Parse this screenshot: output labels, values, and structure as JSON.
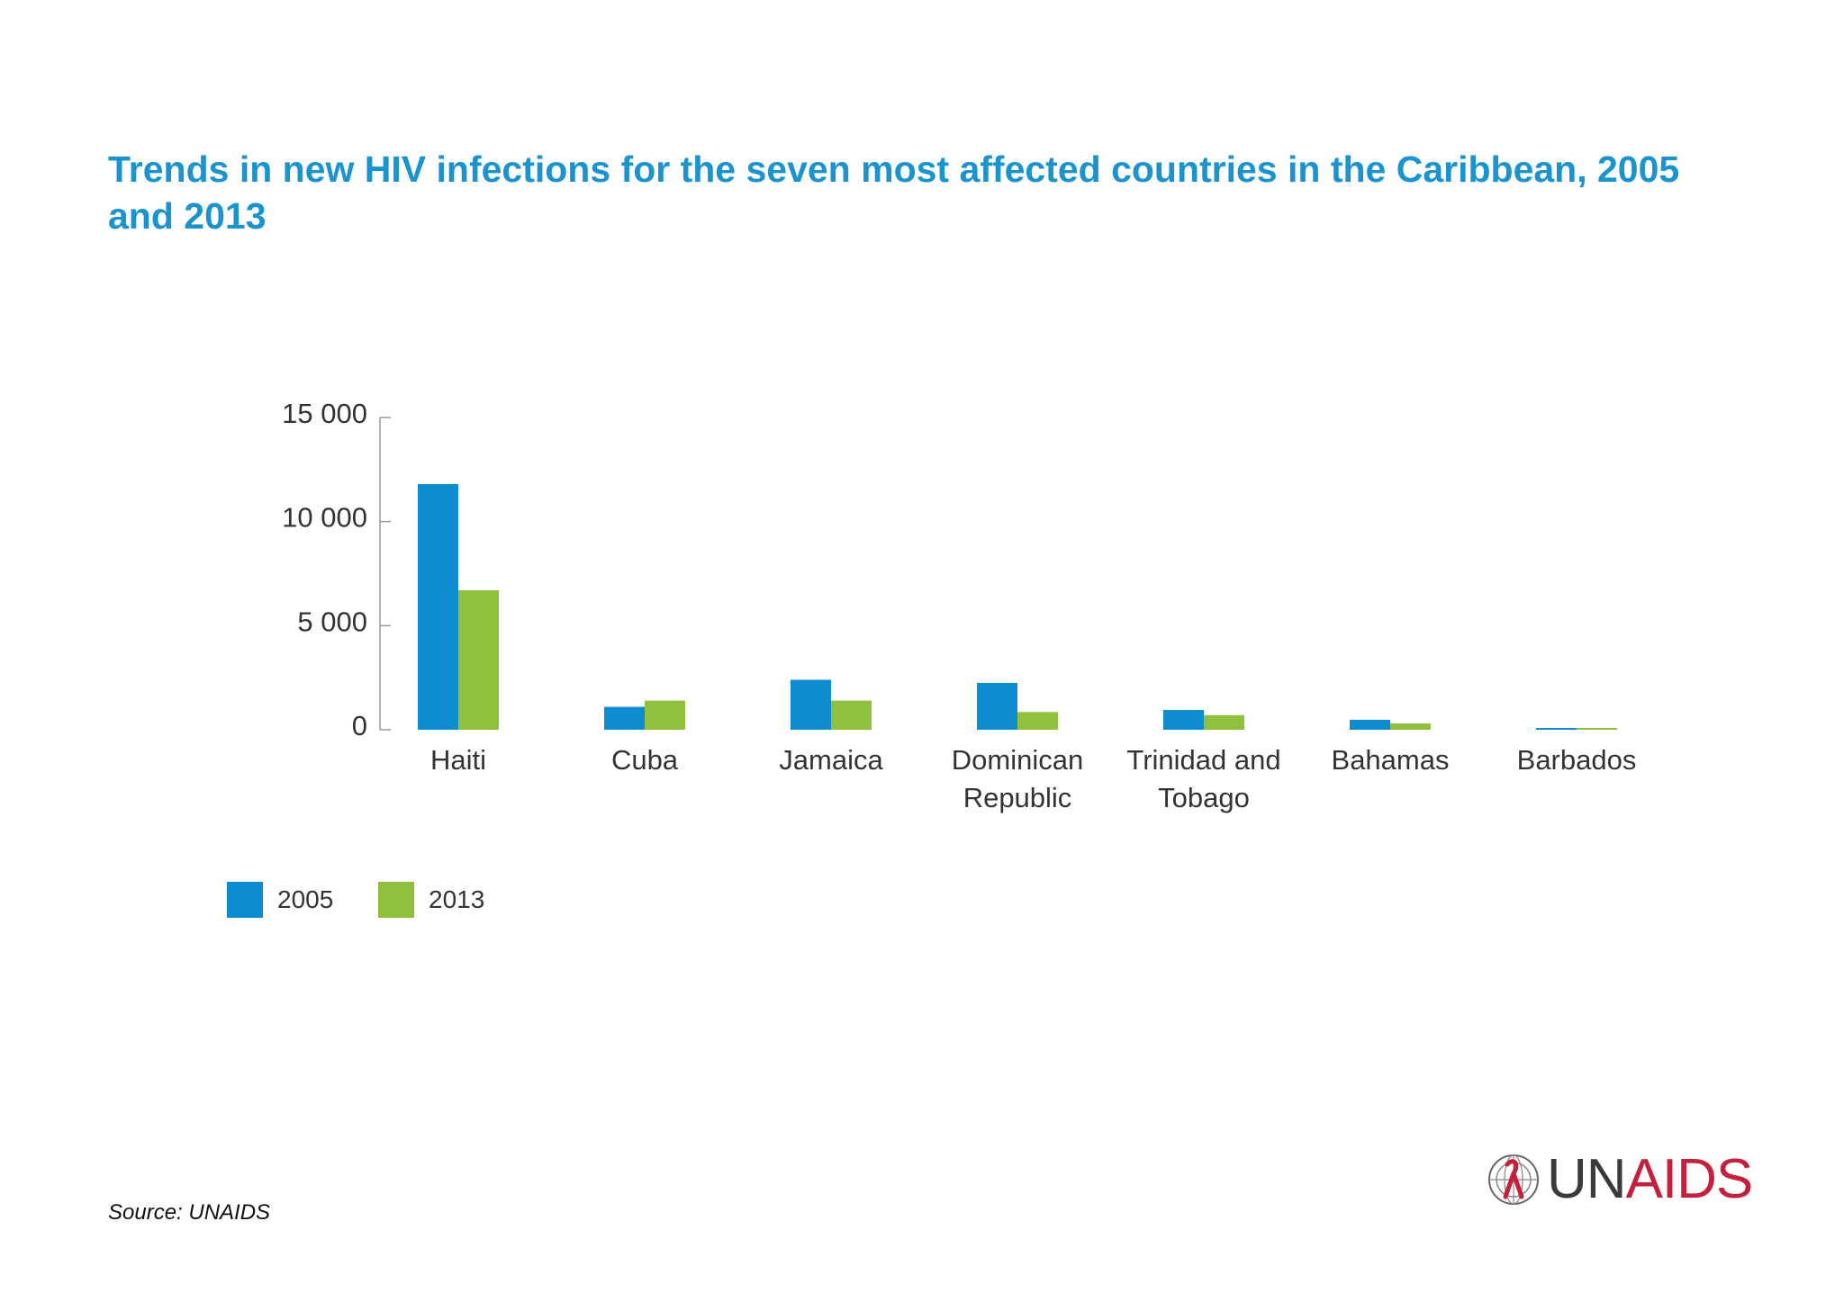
{
  "source_note": "Source: UNAIDS",
  "logo": {
    "part1": "UN",
    "part2": "AIDS"
  },
  "colors": {
    "title": "#1b93cf",
    "series_2005": "#0d8dcf",
    "series_2013": "#8fc13e",
    "logo_red": "#c5203b"
  },
  "chart_data": {
    "type": "bar",
    "title": "Trends in new HIV infections for the seven most affected countries in the Caribbean, 2005 and 2013",
    "xlabel": "",
    "ylabel": "",
    "ylim": [
      0,
      15000
    ],
    "yticks": [
      0,
      5000,
      10000,
      15000
    ],
    "ytick_labels": [
      "0",
      "5 000",
      "10 000",
      "15 000"
    ],
    "categories": [
      "Haiti",
      "Cuba",
      "Jamaica",
      "Dominican Republic",
      "Trinidad and Tobago",
      "Bahamas",
      "Barbados"
    ],
    "category_lines": [
      [
        "Haiti"
      ],
      [
        "Cuba"
      ],
      [
        "Jamaica"
      ],
      [
        "Dominican",
        "Republic"
      ],
      [
        "Trinidad and",
        "Tobago"
      ],
      [
        "Bahamas"
      ],
      [
        "Barbados"
      ]
    ],
    "series": [
      {
        "name": "2005",
        "color": "#0d8dcf",
        "values": [
          11800,
          1100,
          2400,
          2250,
          950,
          480,
          70
        ]
      },
      {
        "name": "2013",
        "color": "#8fc13e",
        "values": [
          6700,
          1400,
          1400,
          850,
          700,
          300,
          80
        ]
      }
    ],
    "grid": false,
    "legend": "bottom-left"
  }
}
